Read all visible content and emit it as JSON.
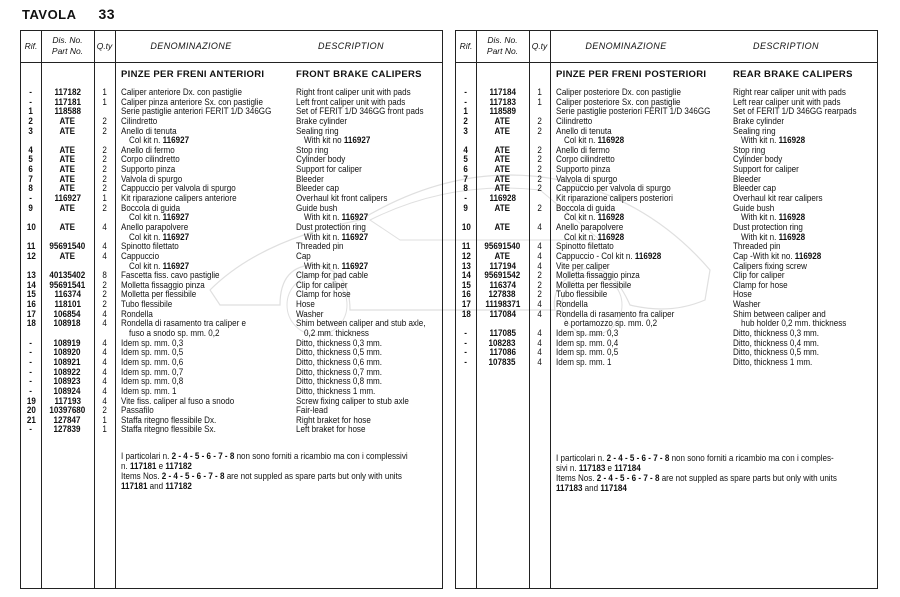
{
  "page": {
    "label": "TAVOLA",
    "number": "33"
  },
  "headers": {
    "rif": "Rif.",
    "dis_no": "Dis. No.",
    "part_no": "Part No.",
    "qty": "Q.ty",
    "denominazione": "DENOMINAZIONE",
    "description": "DESCRIPTION"
  },
  "left": {
    "section_it": "PINZE PER FRENI ANTERIORI",
    "section_en": "FRONT BRAKE CALIPERS",
    "rows": [
      {
        "rif": "-",
        "part": "117182",
        "qty": "1",
        "den": "Caliper anteriore Dx. con pastiglie",
        "desc": "Right front caliper unit with pads"
      },
      {
        "rif": "-",
        "part": "117181",
        "qty": "1",
        "den": "Caliper pinza anteriore Sx. con pastiglie",
        "desc": "Left front caliper unit with pads"
      },
      {
        "rif": "1",
        "part": "118588",
        "qty": "",
        "den": "Serie pastiglie anteriori FERIT 1/D 346GG",
        "desc": "Set of FERIT 1/D 346GG front pads"
      },
      {
        "rif": "2",
        "part": "ATE",
        "qty": "2",
        "den": "Cilindretto",
        "desc": "Brake cylinder"
      },
      {
        "rif": "3",
        "part": "ATE",
        "qty": "2",
        "den": "Anello di tenuta",
        "desc": "Sealing ring"
      },
      {
        "rif": "",
        "part": "",
        "qty": "",
        "den": "Col kit n. ",
        "den_b": "116927",
        "desc": "With kit no ",
        "desc_b": "116927",
        "indent": true
      },
      {
        "rif": "4",
        "part": "ATE",
        "qty": "2",
        "den": "Anello di fermo",
        "desc": "Stop ring"
      },
      {
        "rif": "5",
        "part": "ATE",
        "qty": "2",
        "den": "Corpo cilindretto",
        "desc": "Cylinder body"
      },
      {
        "rif": "6",
        "part": "ATE",
        "qty": "2",
        "den": "Supporto pinza",
        "desc": "Support for caliper"
      },
      {
        "rif": "7",
        "part": "ATE",
        "qty": "2",
        "den": "Valvola di spurgo",
        "desc": "Bleeder"
      },
      {
        "rif": "8",
        "part": "ATE",
        "qty": "2",
        "den": "Cappuccio per valvola di spurgo",
        "desc": "Bleeder cap"
      },
      {
        "rif": "-",
        "part": "116927",
        "qty": "1",
        "den": "Kit riparazione calipers anteriore",
        "desc": "Overhaul kit front calipers"
      },
      {
        "rif": "9",
        "part": "ATE",
        "qty": "2",
        "den": "Boccola di guida",
        "desc": "Guide bush"
      },
      {
        "rif": "",
        "part": "",
        "qty": "",
        "den": "Col kit n. ",
        "den_b": "116927",
        "desc": "With kit n. ",
        "desc_b": "116927",
        "indent": true
      },
      {
        "rif": "10",
        "part": "ATE",
        "qty": "4",
        "den": "Anello parapolvere",
        "desc": "Dust protection ring"
      },
      {
        "rif": "",
        "part": "",
        "qty": "",
        "den": "Col kit n. ",
        "den_b": "116927",
        "desc": "With kit n. ",
        "desc_b": "116927",
        "indent": true
      },
      {
        "rif": "11",
        "part": "95691540",
        "qty": "4",
        "den": "Spinotto filettato",
        "desc": "Threaded pin"
      },
      {
        "rif": "12",
        "part": "ATE",
        "qty": "4",
        "den": "Cappuccio",
        "desc": "Cap"
      },
      {
        "rif": "",
        "part": "",
        "qty": "",
        "den": "Col kit n. ",
        "den_b": "116927",
        "desc": "With kit n. ",
        "desc_b": "116927",
        "indent": true
      },
      {
        "rif": "13",
        "part": "40135402",
        "qty": "8",
        "den": "Fascetta fiss. cavo pastiglie",
        "desc": "Clamp for pad cable"
      },
      {
        "rif": "14",
        "part": "95691541",
        "qty": "2",
        "den": "Molletta fissaggio pinza",
        "desc": "Clip for caliper"
      },
      {
        "rif": "15",
        "part": "116374",
        "qty": "2",
        "den": "Molletta per flessibile",
        "desc": "Clamp for hose"
      },
      {
        "rif": "16",
        "part": "118101",
        "qty": "2",
        "den": "Tubo flessibile",
        "desc": "Hose"
      },
      {
        "rif": "17",
        "part": "106854",
        "qty": "4",
        "den": "Rondella",
        "desc": "Washer"
      },
      {
        "rif": "18",
        "part": "108918",
        "qty": "4",
        "den": "Rondella di rasamento tra caliper e",
        "desc": "Shim between caliper and stub axle,"
      },
      {
        "rif": "",
        "part": "",
        "qty": "",
        "den": "fuso a snodo sp. mm. 0,2",
        "desc": "0,2 mm. thickness",
        "indent": true
      },
      {
        "rif": "-",
        "part": "108919",
        "qty": "4",
        "den": "Idem sp. mm. 0,3",
        "desc": "Ditto, thickness 0,3 mm."
      },
      {
        "rif": "-",
        "part": "108920",
        "qty": "4",
        "den": "Idem sp. mm. 0,5",
        "desc": "Ditto, thickness 0,5 mm."
      },
      {
        "rif": "-",
        "part": "108921",
        "qty": "4",
        "den": "Idem sp. mm. 0,6",
        "desc": "Ditto, thickness 0,6 mm."
      },
      {
        "rif": "-",
        "part": "108922",
        "qty": "4",
        "den": "Idem sp. mm. 0,7",
        "desc": "Ditto, thickness 0,7 mm."
      },
      {
        "rif": "-",
        "part": "108923",
        "qty": "4",
        "den": "Idem sp. mm. 0,8",
        "desc": "Ditto, thickness 0,8 mm."
      },
      {
        "rif": "-",
        "part": "108924",
        "qty": "4",
        "den": "Idem sp. mm. 1",
        "desc": "Ditto, thickness 1 mm."
      },
      {
        "rif": "19",
        "part": "117193",
        "qty": "4",
        "den": "Vite fiss. caliper al fuso a snodo",
        "desc": "Screw fixing caliper to stub axle"
      },
      {
        "rif": "20",
        "part": "10397680",
        "qty": "2",
        "den": "Passafilo",
        "desc": "Fair-lead"
      },
      {
        "rif": "21",
        "part": "127847",
        "qty": "1",
        "den": "Staffa ritegno flessibile Dx.",
        "desc": "Right braket for hose"
      },
      {
        "rif": "-",
        "part": "127839",
        "qty": "1",
        "den": "Staffa ritegno flessibile Sx.",
        "desc": "Left braket for hose"
      }
    ],
    "notes": [
      [
        {
          "t": "I particolari n. "
        },
        {
          "t": "2 - 4 - 5 - 6 - 7 - 8",
          "b": true
        },
        {
          "t": " non sono forniti a ricambio ma con i complessivi"
        }
      ],
      [
        {
          "t": "n. "
        },
        {
          "t": "117181",
          "b": true
        },
        {
          "t": " e "
        },
        {
          "t": "117182",
          "b": true
        }
      ],
      [
        {
          "t": "Items Nos. "
        },
        {
          "t": "2 - 4 - 5 - 6 - 7 - 8",
          "b": true
        },
        {
          "t": " are not suppled as spare parts but only with units"
        }
      ],
      [
        {
          "t": "117181",
          "b": true
        },
        {
          "t": " and "
        },
        {
          "t": "117182",
          "b": true
        }
      ]
    ]
  },
  "right": {
    "section_it": "PINZE PER FRENI POSTERIORI",
    "section_en": "REAR BRAKE CALIPERS",
    "rows": [
      {
        "rif": "-",
        "part": "117184",
        "qty": "1",
        "den": "Caliper posteriore Dx. con pastiglie",
        "desc": "Right rear caliper unit with pads"
      },
      {
        "rif": "-",
        "part": "117183",
        "qty": "1",
        "den": "Caliper posteriore Sx. con pastiglie",
        "desc": "Left rear caliper unit with pads"
      },
      {
        "rif": "1",
        "part": "118589",
        "qty": "",
        "den": "Serie pastiglie posteriori FERIT 1/D 346GG",
        "desc": "Set of FERIT 1/D 346GG rearpads"
      },
      {
        "rif": "2",
        "part": "ATE",
        "qty": "2",
        "den": "Cilindretto",
        "desc": "Brake cylinder"
      },
      {
        "rif": "3",
        "part": "ATE",
        "qty": "2",
        "den": "Anello di tenuta",
        "desc": "Sealing ring"
      },
      {
        "rif": "",
        "part": "",
        "qty": "",
        "den": "Col kit n. ",
        "den_b": "116928",
        "desc": "With kit n. ",
        "desc_b": "116928",
        "indent": true
      },
      {
        "rif": "4",
        "part": "ATE",
        "qty": "2",
        "den": "Anello di fermo",
        "desc": "Stop ring"
      },
      {
        "rif": "5",
        "part": "ATE",
        "qty": "2",
        "den": "Corpo cilindretto",
        "desc": "Cylinder body"
      },
      {
        "rif": "6",
        "part": "ATE",
        "qty": "2",
        "den": "Supporto pinza",
        "desc": "Support for caliper"
      },
      {
        "rif": "7",
        "part": "ATE",
        "qty": "2",
        "den": "Valvola di spurgo",
        "desc": "Bleeder"
      },
      {
        "rif": "8",
        "part": "ATE",
        "qty": "2",
        "den": "Cappuccio per valvola di spurgo",
        "desc": "Bleeder cap"
      },
      {
        "rif": "-",
        "part": "116928",
        "qty": "",
        "den": "Kit riparazione calipers posteriori",
        "desc": "Overhaul kit rear calipers"
      },
      {
        "rif": "9",
        "part": "ATE",
        "qty": "2",
        "den": "Boccola di guida",
        "desc": "Guide bush"
      },
      {
        "rif": "",
        "part": "",
        "qty": "",
        "den": "Col kit n. ",
        "den_b": "116928",
        "desc": "With kit n. ",
        "desc_b": "116928",
        "indent": true
      },
      {
        "rif": "10",
        "part": "ATE",
        "qty": "4",
        "den": "Anello parapolvere",
        "desc": "Dust protection ring"
      },
      {
        "rif": "",
        "part": "",
        "qty": "",
        "den": "Col kit n. ",
        "den_b": "116928",
        "desc": "With kit n. ",
        "desc_b": "116928",
        "indent": true
      },
      {
        "rif": "11",
        "part": "95691540",
        "qty": "4",
        "den": "Spinotto filettato",
        "desc": "Threaded pin"
      },
      {
        "rif": "12",
        "part": "ATE",
        "qty": "4",
        "den": "Cappuccio - Col kit n. ",
        "den_b": "116928",
        "desc": "Cap -With kit no. ",
        "desc_b": "116928"
      },
      {
        "rif": "13",
        "part": "117194",
        "qty": "4",
        "den": "Vite per caliper",
        "desc": "Calipers fixing screw"
      },
      {
        "rif": "14",
        "part": "95691542",
        "qty": "2",
        "den": "Molletta fissaggio pinza",
        "desc": "Clip for caliper"
      },
      {
        "rif": "15",
        "part": "116374",
        "qty": "2",
        "den": "Molletta per flessibile",
        "desc": "Clamp for hose"
      },
      {
        "rif": "16",
        "part": "127838",
        "qty": "2",
        "den": "Tubo flessibile",
        "desc": "Hose"
      },
      {
        "rif": "17",
        "part": "11198371",
        "qty": "4",
        "den": "Rondella",
        "desc": "Washer"
      },
      {
        "rif": "18",
        "part": "117084",
        "qty": "4",
        "den": "Rondella di rasamento fra caliper",
        "desc": "Shim between caliper and"
      },
      {
        "rif": "",
        "part": "",
        "qty": "",
        "den": "e portamozzo sp. mm. 0,2",
        "desc": "hub holder 0,2 mm. thickness",
        "indent": true
      },
      {
        "rif": "-",
        "part": "117085",
        "qty": "4",
        "den": "Idem sp. mm. 0,3",
        "desc": "Ditto, thickness 0,3 mm."
      },
      {
        "rif": "-",
        "part": "108283",
        "qty": "4",
        "den": "Idem sp. mm. 0,4",
        "desc": "Ditto, thickness 0,4 mm."
      },
      {
        "rif": "-",
        "part": "117086",
        "qty": "4",
        "den": "Idem sp. mm. 0,5",
        "desc": "Ditto, thickness 0,5 mm."
      },
      {
        "rif": "-",
        "part": "107835",
        "qty": "4",
        "den": "Idem sp. mm. 1",
        "desc": "Ditto, thickness 1 mm."
      }
    ],
    "notes": [
      [
        {
          "t": "I particolari n. "
        },
        {
          "t": "2 - 4 - 5 - 6 - 7 - 8",
          "b": true
        },
        {
          "t": " non sono forniti a ricambio ma con i comples-"
        }
      ],
      [
        {
          "t": "sivi n. "
        },
        {
          "t": "117183",
          "b": true
        },
        {
          "t": " e "
        },
        {
          "t": "117184",
          "b": true
        }
      ],
      [
        {
          "t": "Items Nos. "
        },
        {
          "t": "2 - 4 - 5 - 6 - 7 - 8",
          "b": true
        },
        {
          "t": " are not suppled as spare parts but only with units"
        }
      ],
      [
        {
          "t": "117183",
          "b": true
        },
        {
          "t": " and "
        },
        {
          "t": "117184",
          "b": true
        }
      ]
    ]
  }
}
